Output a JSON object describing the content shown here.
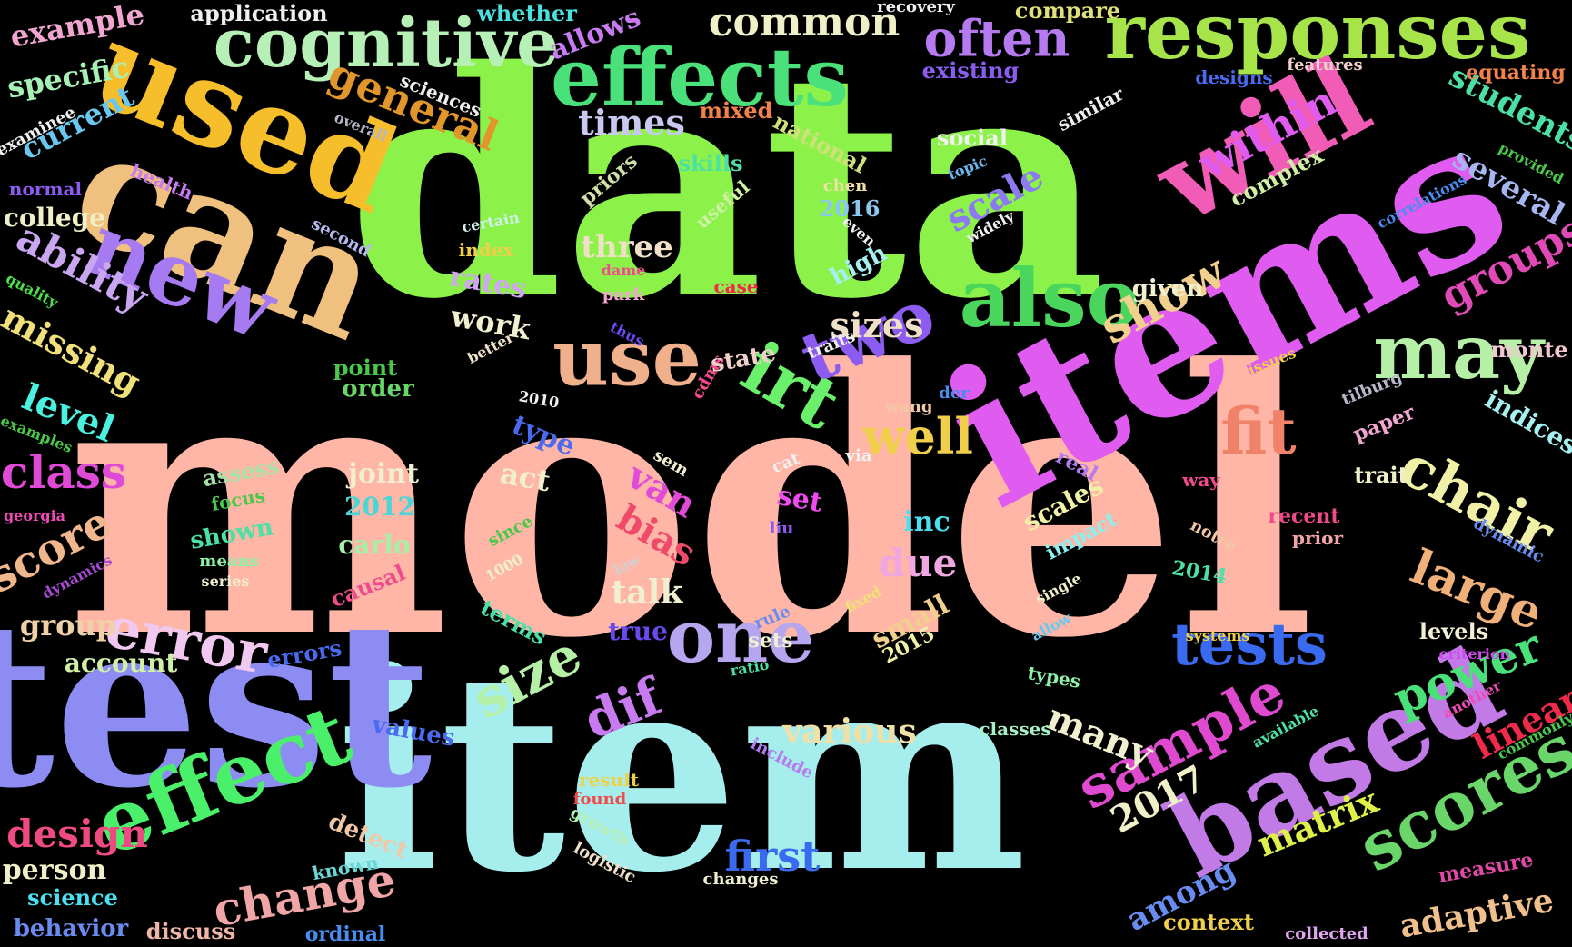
{
  "words": [
    {
      "text": "model",
      "color": "#ffb6a6"
    },
    {
      "text": "data",
      "color": "#8cf24a"
    },
    {
      "text": "item",
      "color": "#a6eeee"
    },
    {
      "text": "test",
      "color": "#8c8cf2"
    },
    {
      "text": "items",
      "color": "#e05cf0"
    },
    {
      "text": "can",
      "color": "#f0c07e"
    },
    {
      "text": "used",
      "color": "#f6be2a"
    },
    {
      "text": "responses",
      "color": "#a6e44a"
    },
    {
      "text": "effects",
      "color": "#4ae07a"
    },
    {
      "text": "cognitive",
      "color": "#b6f0b6"
    },
    {
      "text": "will",
      "color": "#f05cb6"
    },
    {
      "text": "based",
      "color": "#c27ae6"
    },
    {
      "text": "new",
      "color": "#a67af0"
    },
    {
      "text": "effect",
      "color": "#4af06a"
    },
    {
      "text": "also",
      "color": "#4ad65c"
    },
    {
      "text": "may",
      "color": "#b6f0a6"
    },
    {
      "text": "irt",
      "color": "#6af06a"
    },
    {
      "text": "two",
      "color": "#8c5cf0"
    },
    {
      "text": "use",
      "color": "#f0b08c"
    },
    {
      "text": "one",
      "color": "#b6a6f0"
    },
    {
      "text": "fit",
      "color": "#f0826a"
    },
    {
      "text": "scores",
      "color": "#6ad66a"
    },
    {
      "text": "sample",
      "color": "#e04ad0"
    },
    {
      "text": "tests",
      "color": "#3a6af0"
    },
    {
      "text": "often",
      "color": "#b67af0"
    },
    {
      "text": "common",
      "color": "#f0f0c8"
    },
    {
      "text": "general",
      "color": "#e0962a"
    },
    {
      "text": "ability",
      "color": "#c8a6f0"
    },
    {
      "text": "error",
      "color": "#f0c8f0"
    },
    {
      "text": "size",
      "color": "#b6f0a6"
    },
    {
      "text": "chair",
      "color": "#f0f0a6"
    },
    {
      "text": "large",
      "color": "#f0b07a"
    },
    {
      "text": "power",
      "color": "#4ae07a"
    },
    {
      "text": "class",
      "color": "#e04ad6"
    },
    {
      "text": "score",
      "color": "#f0b68c"
    },
    {
      "text": "level",
      "color": "#4af0e0"
    },
    {
      "text": "missing",
      "color": "#f0e07a"
    },
    {
      "text": "change",
      "color": "#f0a6a6"
    },
    {
      "text": "design",
      "color": "#f04a82"
    },
    {
      "text": "first",
      "color": "#3a6af0"
    },
    {
      "text": "dif",
      "color": "#c87af0"
    },
    {
      "text": "well",
      "color": "#f0d04a"
    },
    {
      "text": "show",
      "color": "#f0d08c"
    },
    {
      "text": "within",
      "color": "#e05cf0"
    },
    {
      "text": "groups",
      "color": "#e04ab6"
    },
    {
      "text": "students",
      "color": "#4ae0a6"
    },
    {
      "text": "several",
      "color": "#a6b6f0"
    },
    {
      "text": "indices",
      "color": "#a6f0f0"
    },
    {
      "text": "linear",
      "color": "#f02a4a"
    },
    {
      "text": "adaptive",
      "color": "#f0c08c"
    },
    {
      "text": "matrix",
      "color": "#e0f04a"
    },
    {
      "text": "among",
      "color": "#6a8cf0"
    },
    {
      "text": "many",
      "color": "#f0f0d0"
    },
    {
      "text": "2017",
      "color": "#f0f0c8"
    },
    {
      "text": "various",
      "color": "#f0e0a6"
    },
    {
      "text": "sizes",
      "color": "#f0e0c8"
    },
    {
      "text": "scale",
      "color": "#8c7af0"
    },
    {
      "text": "times",
      "color": "#c8c8f0"
    },
    {
      "text": "specific",
      "color": "#a6f0b6"
    },
    {
      "text": "current",
      "color": "#6ac8f0"
    },
    {
      "text": "example",
      "color": "#f0a6d0"
    },
    {
      "text": "application",
      "color": "#f0f0f0"
    },
    {
      "text": "whether",
      "color": "#4ae0e0"
    },
    {
      "text": "allows",
      "color": "#c87af0"
    },
    {
      "text": "compare",
      "color": "#e0e07a"
    },
    {
      "text": "recovery",
      "color": "#f0f0f0"
    },
    {
      "text": "existing",
      "color": "#8c5cf0"
    },
    {
      "text": "designs",
      "color": "#4a6af0"
    },
    {
      "text": "features",
      "color": "#f0d0c8"
    },
    {
      "text": "equating",
      "color": "#f0824a"
    },
    {
      "text": "similar",
      "color": "#f0f0f0"
    },
    {
      "text": "social",
      "color": "#f0f0f0"
    },
    {
      "text": "topic",
      "color": "#6ab6f0"
    },
    {
      "text": "widely",
      "color": "#f0f0f0"
    },
    {
      "text": "complex",
      "color": "#d0f0a6"
    },
    {
      "text": "provided",
      "color": "#4ac84a"
    },
    {
      "text": "correlations",
      "color": "#4a8cf0"
    },
    {
      "text": "given",
      "color": "#f0f0d0"
    },
    {
      "text": "monte",
      "color": "#f0c8d0"
    },
    {
      "text": "issues",
      "color": "#f0d04a"
    },
    {
      "text": "tilburg",
      "color": "#b6b6c8"
    },
    {
      "text": "paper",
      "color": "#f0a6d0"
    },
    {
      "text": "trait",
      "color": "#f0f0c8"
    },
    {
      "text": "recent",
      "color": "#f04a8c"
    },
    {
      "text": "prior",
      "color": "#f0a6a6"
    },
    {
      "text": "dynamic",
      "color": "#6a8cf0"
    },
    {
      "text": "levels",
      "color": "#f0f0d0"
    },
    {
      "text": "criterion",
      "color": "#d04af0"
    },
    {
      "text": "another",
      "color": "#f04ab6"
    },
    {
      "text": "commonly",
      "color": "#4ac84a"
    },
    {
      "text": "measure",
      "color": "#e04aa6"
    },
    {
      "text": "collected",
      "color": "#e0a6f0"
    },
    {
      "text": "context",
      "color": "#f0d04a"
    },
    {
      "text": "available",
      "color": "#4ae0a6"
    },
    {
      "text": "systems",
      "color": "#f0d04a"
    },
    {
      "text": "notre",
      "color": "#f0c8a6"
    },
    {
      "text": "2014",
      "color": "#4ae0a6"
    },
    {
      "text": "impact",
      "color": "#8cf0f0"
    },
    {
      "text": "scales",
      "color": "#f0f0a6"
    },
    {
      "text": "real",
      "color": "#b67af0"
    },
    {
      "text": "way",
      "color": "#f04a8c"
    },
    {
      "text": "single",
      "color": "#f0f0c8"
    },
    {
      "text": "allow",
      "color": "#6ac8f0"
    },
    {
      "text": "types",
      "color": "#8cf0a6"
    },
    {
      "text": "classes",
      "color": "#a6f0c8"
    },
    {
      "text": "inc",
      "color": "#4ae0f0"
    },
    {
      "text": "due",
      "color": "#f0a6e0"
    },
    {
      "text": "small",
      "color": "#f0d08c"
    },
    {
      "text": "2015",
      "color": "#f0f0a6"
    },
    {
      "text": "fixed",
      "color": "#f0e07a"
    },
    {
      "text": "via",
      "color": "#f0f0f0"
    },
    {
      "text": "der",
      "color": "#4a8cf0"
    },
    {
      "text": "wang",
      "color": "#f0c8a6"
    },
    {
      "text": "cat",
      "color": "#f0f0f0"
    },
    {
      "text": "set",
      "color": "#f04af0"
    },
    {
      "text": "liu",
      "color": "#8c5cf0"
    },
    {
      "text": "rule",
      "color": "#6a8cf0"
    },
    {
      "text": "sets",
      "color": "#f0f0d0"
    },
    {
      "text": "ratio",
      "color": "#4ae0a6"
    },
    {
      "text": "include",
      "color": "#b67af0"
    },
    {
      "text": "result",
      "color": "#f0d04a"
    },
    {
      "text": "found",
      "color": "#f04a4a"
    },
    {
      "text": "growth",
      "color": "#b6f0b6"
    },
    {
      "text": "logistic",
      "color": "#f0e0c8"
    },
    {
      "text": "changes",
      "color": "#f0f0d0"
    },
    {
      "text": "values",
      "color": "#4a6af0"
    },
    {
      "text": "ordinal",
      "color": "#4a8cf0"
    },
    {
      "text": "known",
      "color": "#6ad6d6"
    },
    {
      "text": "detect",
      "color": "#f0c8a6"
    },
    {
      "text": "discuss",
      "color": "#f0b6a6"
    },
    {
      "text": "behavior",
      "color": "#6a8cf0"
    },
    {
      "text": "science",
      "color": "#4ae0f0"
    },
    {
      "text": "person",
      "color": "#f0f0c8"
    },
    {
      "text": "errors",
      "color": "#4a6af0"
    },
    {
      "text": "account",
      "color": "#d0f0a6"
    },
    {
      "text": "group",
      "color": "#f0d0a6"
    },
    {
      "text": "dynamics",
      "color": "#a64ad0"
    },
    {
      "text": "georgia",
      "color": "#f04ab6"
    },
    {
      "text": "series",
      "color": "#f0f0d0"
    },
    {
      "text": "means",
      "color": "#8cf0a6"
    },
    {
      "text": "shown",
      "color": "#4ae0a6"
    },
    {
      "text": "focus",
      "color": "#4ac84a"
    },
    {
      "text": "assess",
      "color": "#a6e0a6"
    },
    {
      "text": "joint",
      "color": "#f0f0d0"
    },
    {
      "text": "2012",
      "color": "#4ad6d6"
    },
    {
      "text": "carlo",
      "color": "#a6f0a6"
    },
    {
      "text": "causal",
      "color": "#f04a8c"
    },
    {
      "text": "examples",
      "color": "#4ac84a"
    },
    {
      "text": "terms",
      "color": "#4ae0a6"
    },
    {
      "text": "talk",
      "color": "#f0f0d0"
    },
    {
      "text": "true",
      "color": "#6a4af0"
    },
    {
      "text": "low",
      "color": "#d0d0d0"
    },
    {
      "text": "1000",
      "color": "#f0f0d0"
    },
    {
      "text": "since",
      "color": "#4ac84a"
    },
    {
      "text": "van",
      "color": "#e04ad6"
    },
    {
      "text": "bias",
      "color": "#f04a6a"
    },
    {
      "text": "sem",
      "color": "#f0f0d0"
    },
    {
      "text": "act",
      "color": "#f0f0d0"
    },
    {
      "text": "type",
      "color": "#4a6af0"
    },
    {
      "text": "2010",
      "color": "#f0f0f0"
    },
    {
      "text": "cdms",
      "color": "#f04a8c"
    },
    {
      "text": "state",
      "color": "#f0d0c8"
    },
    {
      "text": "traits",
      "color": "#f0f0f0"
    },
    {
      "text": "order",
      "color": "#6ad66a"
    },
    {
      "text": "point",
      "color": "#4ac84a"
    },
    {
      "text": "work",
      "color": "#f0f0d0"
    },
    {
      "text": "better",
      "color": "#f0e0c8"
    },
    {
      "text": "thus",
      "color": "#6a4af0"
    },
    {
      "text": "rates",
      "color": "#d0a6f0"
    },
    {
      "text": "three",
      "color": "#f0e0c8"
    },
    {
      "text": "park",
      "color": "#f0a6d0"
    },
    {
      "text": "dame",
      "color": "#f04a8c"
    },
    {
      "text": "index",
      "color": "#f0d04a"
    },
    {
      "text": "certain",
      "color": "#d0f0f0"
    },
    {
      "text": "case",
      "color": "#f02a4a"
    },
    {
      "text": "high",
      "color": "#a6f0f0"
    },
    {
      "text": "2016",
      "color": "#8cc8f0"
    },
    {
      "text": "even",
      "color": "#f0f0f0"
    },
    {
      "text": "chen",
      "color": "#f0e0a6"
    },
    {
      "text": "useful",
      "color": "#d0f0a6"
    },
    {
      "text": "skills",
      "color": "#4ae0a6"
    },
    {
      "text": "priors",
      "color": "#d0e0a6"
    },
    {
      "text": "national",
      "color": "#d0e07a"
    },
    {
      "text": "mixed",
      "color": "#f0824a"
    },
    {
      "text": "sciences",
      "color": "#f0f0f0"
    },
    {
      "text": "overall",
      "color": "#b6b6c8"
    },
    {
      "text": "health",
      "color": "#c87af0"
    },
    {
      "text": "second",
      "color": "#b6b6f0"
    },
    {
      "text": "college",
      "color": "#f0f0c8"
    },
    {
      "text": "normal",
      "color": "#8c5cf0"
    },
    {
      "text": "examinee",
      "color": "#f0f0f0"
    },
    {
      "text": "quality",
      "color": "#4ae04a"
    }
  ]
}
